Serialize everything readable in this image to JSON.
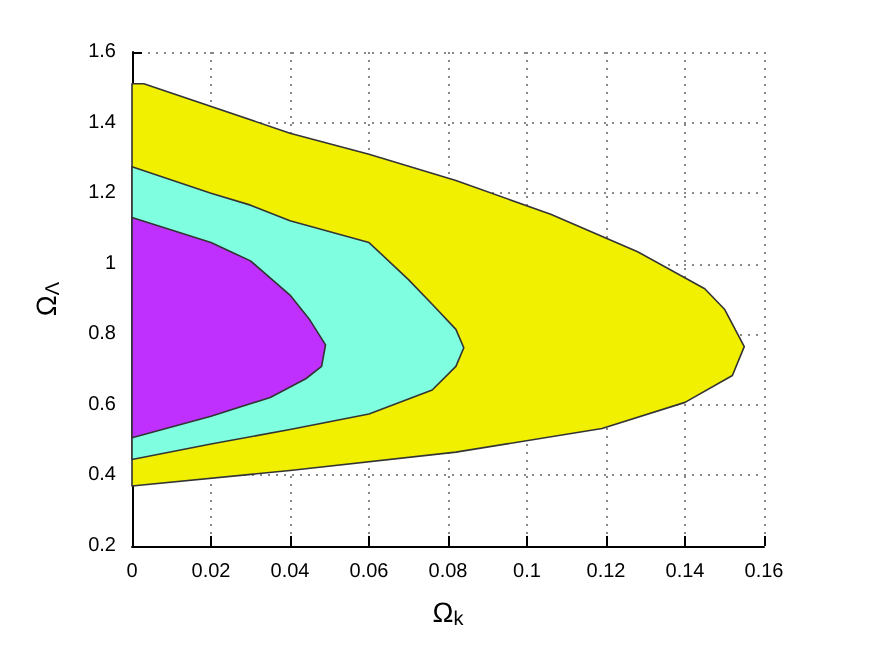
{
  "chart_data": {
    "type": "area",
    "xlabel": "Ω$_{k}$",
    "ylabel": "Ω$_{Λ}$",
    "xlim": [
      0,
      0.16
    ],
    "xticks": [
      0,
      0.02,
      0.04,
      0.06,
      0.08,
      0.1,
      0.12,
      0.14,
      0.16
    ],
    "ylim": [
      0.2,
      1.6
    ],
    "yticks": [
      0.2,
      0.4,
      0.6,
      0.8,
      1,
      1.2,
      1.4,
      1.6
    ],
    "grid": true,
    "series": [
      {
        "color": "#f0f000",
        "x": [
          0,
          0.003,
          0.04,
          0.06,
          0.082,
          0.106,
          0.128,
          0.145,
          0.15,
          0.155,
          0.152,
          0.14,
          0.119,
          0.082,
          0.04,
          0
        ],
        "values": [
          1.51,
          1.51,
          1.37,
          1.31,
          1.236,
          1.14,
          1.034,
          0.929,
          0.871,
          0.765,
          0.683,
          0.607,
          0.533,
          0.466,
          0.414,
          0.37
        ]
      },
      {
        "color": "#7fffdf",
        "x": [
          0,
          0.02,
          0.03,
          0.04,
          0.06,
          0.07,
          0.076,
          0.082,
          0.084,
          0.082,
          0.076,
          0.06,
          0.04,
          0.02,
          0
        ],
        "values": [
          1.275,
          1.2,
          1.166,
          1.122,
          1.06,
          0.955,
          0.885,
          0.814,
          0.762,
          0.709,
          0.642,
          0.574,
          0.53,
          0.489,
          0.445
        ]
      },
      {
        "color": "#bf30ff",
        "x": [
          0,
          0.02,
          0.03,
          0.04,
          0.045,
          0.049,
          0.048,
          0.044,
          0.035,
          0.02,
          0
        ],
        "values": [
          1.131,
          1.06,
          1.008,
          0.911,
          0.841,
          0.77,
          0.709,
          0.674,
          0.621,
          0.568,
          0.507
        ]
      }
    ]
  }
}
